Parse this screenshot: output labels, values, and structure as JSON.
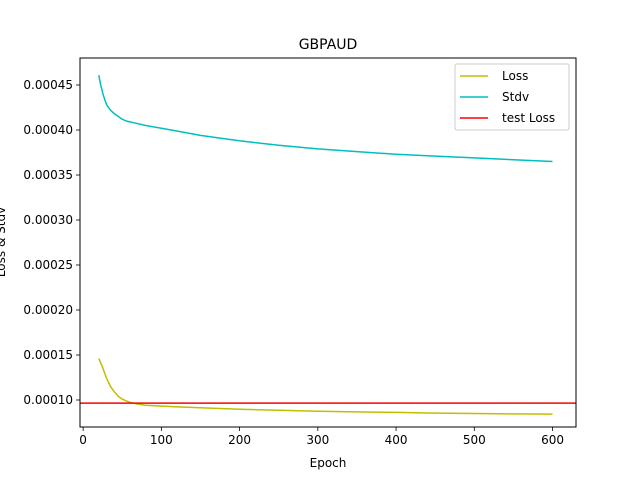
{
  "chart_data": {
    "type": "line",
    "title": "GBPAUD",
    "xlabel": "Epoch",
    "ylabel": "Loss & Stdv",
    "xlim": [
      -4,
      630
    ],
    "ylim": [
      7e-05,
      0.00048
    ],
    "xticks": [
      0,
      100,
      200,
      300,
      400,
      500,
      600
    ],
    "xtick_labels": [
      "0",
      "100",
      "200",
      "300",
      "400",
      "500",
      "600"
    ],
    "yticks": [
      0.0001,
      0.00015,
      0.0002,
      0.00025,
      0.0003,
      0.00035,
      0.0004,
      0.00045
    ],
    "ytick_labels": [
      "0.00010",
      "0.00015",
      "0.00020",
      "0.00025",
      "0.00030",
      "0.00035",
      "0.00040",
      "0.00045"
    ],
    "grid": false,
    "legend_position": "top-right",
    "series": [
      {
        "name": "Loss",
        "color": "#bfbf00",
        "x": [
          20,
          25,
          30,
          35,
          40,
          45,
          50,
          55,
          60,
          70,
          80,
          100,
          125,
          150,
          200,
          250,
          300,
          350,
          400,
          450,
          500,
          550,
          600
        ],
        "y": [
          0.000146,
          0.000136,
          0.000124,
          0.000115,
          0.000109,
          0.000104,
          0.000101,
          9.9e-05,
          9.75e-05,
          9.55e-05,
          9.42e-05,
          9.32e-05,
          9.22e-05,
          9.13e-05,
          8.98e-05,
          8.86e-05,
          8.76e-05,
          8.68e-05,
          8.62e-05,
          8.55e-05,
          8.5e-05,
          8.46e-05,
          8.43e-05
        ]
      },
      {
        "name": "Stdv",
        "color": "#00bfbf",
        "x": [
          20,
          22,
          25,
          28,
          30,
          35,
          40,
          45,
          50,
          55,
          60,
          70,
          80,
          100,
          125,
          150,
          175,
          200,
          250,
          300,
          350,
          400,
          450,
          500,
          550,
          600
        ],
        "y": [
          0.000461,
          0.000452,
          0.000441,
          0.000433,
          0.000428,
          0.000422,
          0.000418,
          0.000415,
          0.000412,
          0.00041,
          0.000409,
          0.000407,
          0.000405,
          0.000402,
          0.000398,
          0.000394,
          0.000391,
          0.000388,
          0.000383,
          0.000379,
          0.000376,
          0.000373,
          0.000371,
          0.000369,
          0.000367,
          0.000365
        ]
      },
      {
        "name": "test Loss",
        "color": "#ff0000",
        "type": "hline",
        "y": 9.65e-05
      }
    ]
  }
}
